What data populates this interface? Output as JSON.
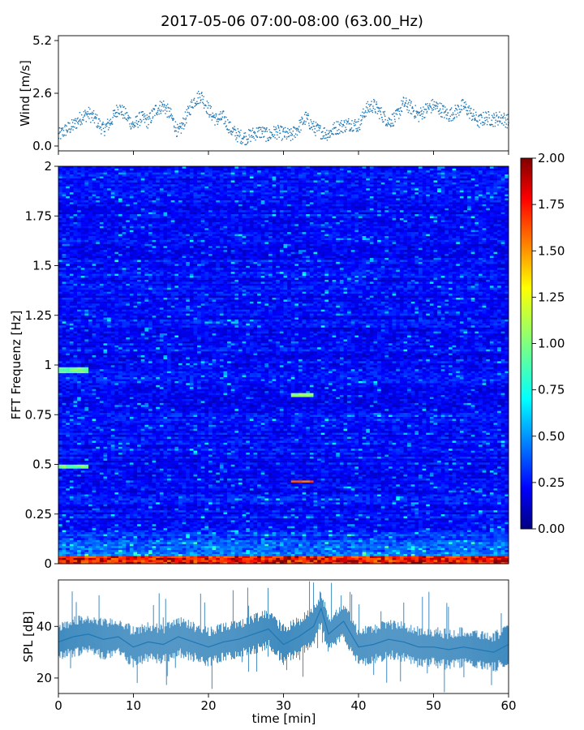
{
  "title": "2017-05-06 07:00-08:00 (63.00_Hz)",
  "colors": {
    "wind_series": "#1f77b4",
    "spl_series": "#1f77b4",
    "colormap": "jet"
  },
  "chart_data": [
    {
      "type": "scatter",
      "name": "wind-panel",
      "ylabel": "Wind [m/s]",
      "xlim": [
        0,
        60
      ],
      "ylim": [
        0.0,
        5.2
      ],
      "yticks": [
        0.0,
        2.6,
        5.2
      ],
      "ytick_labels": [
        "0.0",
        "2.6",
        "5.2"
      ],
      "xtick_labels_visible": false,
      "x": [
        0,
        1,
        2,
        3,
        4,
        5,
        6,
        7,
        8,
        9,
        10,
        11,
        12,
        13,
        14,
        15,
        16,
        17,
        18,
        19,
        20,
        21,
        22,
        23,
        24,
        25,
        26,
        27,
        28,
        29,
        30,
        31,
        32,
        33,
        34,
        35,
        36,
        37,
        38,
        39,
        40,
        41,
        42,
        43,
        44,
        45,
        46,
        47,
        48,
        49,
        50,
        51,
        52,
        53,
        54,
        55,
        56,
        57,
        58,
        59,
        60
      ],
      "y": [
        0.5,
        0.8,
        1.0,
        1.4,
        1.6,
        1.3,
        0.8,
        1.2,
        1.9,
        1.5,
        1.0,
        1.4,
        1.2,
        1.8,
        2.0,
        1.5,
        0.6,
        1.4,
        2.2,
        2.5,
        1.8,
        1.3,
        1.4,
        0.8,
        0.5,
        0.4,
        0.6,
        0.7,
        0.5,
        0.7,
        0.6,
        0.5,
        0.9,
        1.4,
        0.9,
        0.7,
        0.6,
        0.9,
        1.0,
        1.1,
        1.0,
        1.8,
        2.0,
        1.6,
        1.2,
        1.4,
        2.1,
        1.9,
        1.5,
        1.8,
        2.0,
        1.8,
        1.5,
        1.7,
        2.0,
        1.6,
        1.2,
        1.4,
        1.3,
        1.4,
        1.2
      ]
    },
    {
      "type": "heatmap",
      "name": "spectrogram",
      "ylabel": "FFT Frequenz [Hz]",
      "xlim": [
        0,
        60
      ],
      "ylim": [
        0,
        2
      ],
      "yticks": [
        0,
        0.25,
        0.5,
        0.75,
        1,
        1.25,
        1.5,
        1.75,
        2
      ],
      "ytick_labels": [
        "0",
        "0.25",
        "0.5",
        "0.75",
        "1",
        "1.25",
        "1.5",
        "1.75",
        "2"
      ],
      "colorbar": {
        "vmin": 0.0,
        "vmax": 2.0,
        "ticks": [
          0.0,
          0.25,
          0.5,
          0.75,
          1.0,
          1.25,
          1.5,
          1.75,
          2.0
        ],
        "tick_labels": [
          "0.00",
          "0.25",
          "0.50",
          "0.75",
          "1.00",
          "1.25",
          "1.50",
          "1.75",
          "2.00"
        ]
      },
      "notable_features": [
        {
          "t": [
            0,
            4
          ],
          "f": [
            0.96,
            0.99
          ],
          "value": 0.95
        },
        {
          "t": [
            0,
            4
          ],
          "f": [
            0.48,
            0.5
          ],
          "value": 0.95
        },
        {
          "t": [
            31,
            34
          ],
          "f": [
            0.84,
            0.86
          ],
          "value": 1.0
        },
        {
          "t": [
            31,
            34
          ],
          "f": [
            0.41,
            0.42
          ],
          "value": 1.6
        },
        {
          "t": [
            0,
            60
          ],
          "f": [
            0,
            0.04
          ],
          "value": 1.6
        }
      ]
    },
    {
      "type": "line",
      "name": "spl-panel",
      "ylabel": "SPL [dB]",
      "xlabel": "time [min]",
      "xlim": [
        0,
        60
      ],
      "ylim": [
        14,
        58
      ],
      "yticks": [
        20,
        40
      ],
      "ytick_labels": [
        "20",
        "40"
      ],
      "xticks": [
        0,
        10,
        20,
        30,
        40,
        50,
        60
      ],
      "xtick_labels": [
        "0",
        "10",
        "20",
        "30",
        "40",
        "50",
        "60"
      ],
      "x": [
        0,
        2,
        4,
        6,
        8,
        10,
        12,
        14,
        16,
        18,
        20,
        22,
        24,
        26,
        28,
        30,
        32,
        34,
        35,
        36,
        38,
        40,
        42,
        44,
        46,
        48,
        50,
        52,
        54,
        56,
        58,
        60
      ],
      "y": [
        34,
        36,
        37,
        35,
        36,
        32,
        34,
        33,
        36,
        34,
        32,
        34,
        35,
        37,
        39,
        33,
        36,
        40,
        47,
        37,
        42,
        32,
        33,
        35,
        34,
        32,
        32,
        31,
        32,
        31,
        30,
        33
      ]
    }
  ]
}
